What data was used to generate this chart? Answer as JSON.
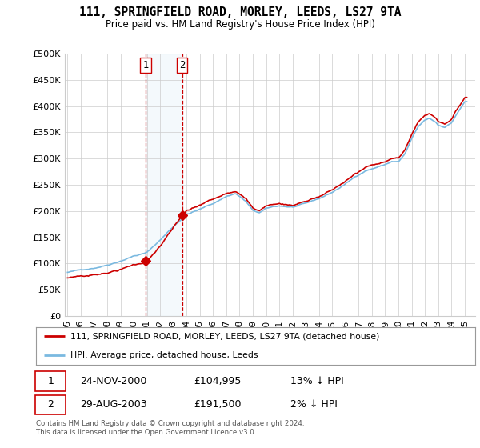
{
  "title": "111, SPRINGFIELD ROAD, MORLEY, LEEDS, LS27 9TA",
  "subtitle": "Price paid vs. HM Land Registry's House Price Index (HPI)",
  "legend_line1": "111, SPRINGFIELD ROAD, MORLEY, LEEDS, LS27 9TA (detached house)",
  "legend_line2": "HPI: Average price, detached house, Leeds",
  "transaction1_date": "24-NOV-2000",
  "transaction1_price": "£104,995",
  "transaction1_hpi": "13% ↓ HPI",
  "transaction1_year": 2000.9,
  "transaction1_value": 104995,
  "transaction2_date": "29-AUG-2003",
  "transaction2_price": "£191,500",
  "transaction2_hpi": "2% ↓ HPI",
  "transaction2_year": 2003.67,
  "transaction2_value": 191500,
  "footer": "Contains HM Land Registry data © Crown copyright and database right 2024.\nThis data is licensed under the Open Government Licence v3.0.",
  "hpi_color": "#7ab9e0",
  "price_color": "#cc0000",
  "marker_color": "#cc0000",
  "vline_color": "#cc0000",
  "shade_color": "#d6e8f5",
  "background_color": "#ffffff",
  "grid_color": "#cccccc",
  "ylim_min": 0,
  "ylim_max": 500000,
  "xlim_min": 1994.8,
  "xlim_max": 2025.8
}
